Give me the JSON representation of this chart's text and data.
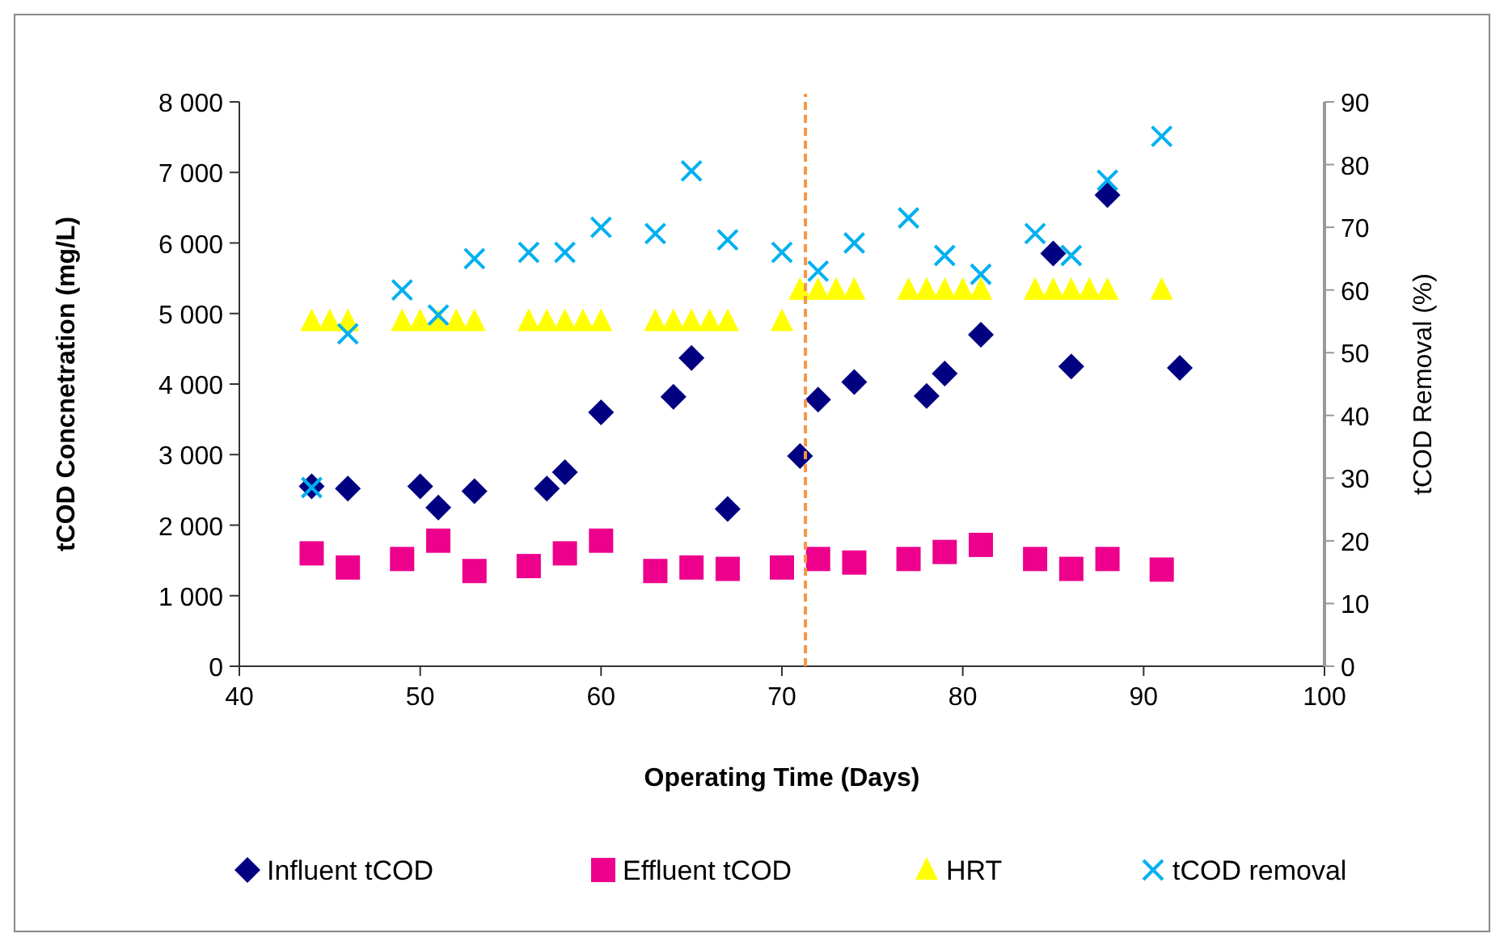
{
  "chart_data": {
    "type": "scatter",
    "xlabel": "Operating Time (Days)",
    "ylabel": "tCOD Concnetration (mg/L)",
    "y2label": "tCOD Removal (%)",
    "xlim": [
      40,
      100
    ],
    "xticks": [
      40,
      50,
      60,
      70,
      80,
      90,
      100
    ],
    "ylim": [
      0,
      8000
    ],
    "yticks": [
      0,
      {
        "value": 1000,
        "label": "1 000"
      },
      {
        "value": 2000,
        "label": "2 000"
      },
      {
        "value": 3000,
        "label": "3 000"
      },
      {
        "value": 4000,
        "label": "4 000"
      },
      {
        "value": 5000,
        "label": "5 000"
      },
      {
        "value": 6000,
        "label": "6 000"
      },
      {
        "value": 7000,
        "label": "7 000"
      },
      {
        "value": 8000,
        "label": "8 000"
      }
    ],
    "y2lim": [
      0,
      90
    ],
    "y2ticks": [
      0,
      10,
      20,
      30,
      40,
      50,
      60,
      70,
      80,
      90
    ],
    "grid": false,
    "legend": "bottom",
    "ref_lines": [
      {
        "axis": "x",
        "value": 71.3,
        "color": "#f79646",
        "line_style": "dashed"
      }
    ],
    "series": [
      {
        "name": "Influent tCOD",
        "color": "#000080",
        "marker": "diamond",
        "x": [
          44,
          46,
          50,
          51,
          53,
          57,
          58,
          60,
          64,
          65,
          67,
          71,
          72,
          74,
          78,
          79,
          81,
          85,
          86,
          88,
          92
        ],
        "values": [
          2550,
          2520,
          2550,
          2250,
          2480,
          2520,
          2750,
          3600,
          3820,
          4370,
          2230,
          2980,
          3780,
          4030,
          3830,
          4150,
          4700,
          5850,
          4250,
          6680,
          4230
        ]
      },
      {
        "name": "Effluent tCOD",
        "color": "#ec008c",
        "marker": "square",
        "x": [
          44,
          46,
          49,
          51,
          53,
          56,
          58,
          60,
          63,
          65,
          67,
          70,
          72,
          74,
          77,
          79,
          81,
          84,
          86,
          88,
          91
        ],
        "values": [
          1600,
          1400,
          1520,
          1780,
          1350,
          1420,
          1600,
          1780,
          1350,
          1400,
          1380,
          1400,
          1520,
          1470,
          1520,
          1620,
          1720,
          1520,
          1380,
          1520,
          1370
        ]
      },
      {
        "name": "HRT",
        "color": "#ffff00",
        "marker": "triangle",
        "axis": "y2",
        "x": [
          44,
          45,
          46,
          49,
          50,
          51,
          52,
          53,
          56,
          57,
          58,
          59,
          60,
          63,
          64,
          65,
          66,
          67,
          70,
          71,
          72,
          73,
          74,
          77,
          78,
          79,
          80,
          81,
          84,
          85,
          86,
          87,
          88,
          91
        ],
        "values": [
          55,
          55,
          55,
          55,
          55,
          55,
          55,
          55,
          55,
          55,
          55,
          55,
          55,
          55,
          55,
          55,
          55,
          55,
          55,
          60,
          60,
          60,
          60,
          60,
          60,
          60,
          60,
          60,
          60,
          60,
          60,
          60,
          60,
          60
        ]
      },
      {
        "name": "tCOD removal",
        "color": "#00b0f0",
        "marker": "cross",
        "axis": "y2",
        "x": [
          44,
          46,
          49,
          51,
          53,
          56,
          58,
          60,
          63,
          65,
          67,
          70,
          72,
          74,
          77,
          79,
          81,
          84,
          86,
          88,
          91
        ],
        "values": [
          28.5,
          53,
          60,
          56,
          65,
          66,
          66,
          70,
          69,
          79,
          68,
          66,
          63,
          67.5,
          71.5,
          65.5,
          62.5,
          69,
          65.5,
          77.5,
          84.5
        ]
      }
    ]
  }
}
